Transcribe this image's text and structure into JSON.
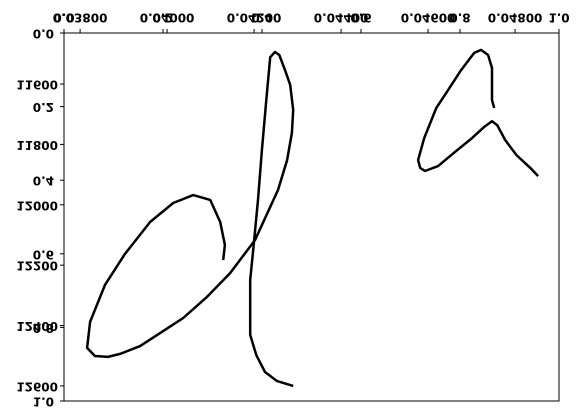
{
  "chart_data": {
    "type": "line",
    "x": [
      0.04129,
      0.04133,
      0.04122,
      0.04099,
      0.0406,
      0.04014,
      0.03961,
      0.03903,
      0.03857,
      0.03823,
      0.03816,
      0.03834,
      0.03864,
      0.03892,
      0.03938,
      0.03984,
      0.04037,
      0.04092,
      0.04145,
      0.04202,
      0.04255,
      0.04276,
      0.04287,
      0.0429,
      0.04283,
      0.04271,
      0.04258,
      0.04248,
      0.04237,
      0.04228,
      0.04218,
      0.04209,
      0.04198,
      0.04191,
      0.04191,
      0.04205,
      0.04225,
      0.04253,
      0.0429,
      null,
      0.04752,
      0.04747,
      0.04747,
      0.04738,
      0.04722,
      0.04706,
      0.04676,
      0.04646,
      0.04619,
      0.04591,
      0.04577,
      0.04582,
      0.04593,
      0.04623,
      0.04662,
      0.04701,
      0.04729,
      0.04747,
      0.04759,
      0.04777,
      0.04803,
      0.04835,
      0.04853
    ],
    "series": [
      {
        "color": "#000000",
        "values": [
          12183,
          12133,
          12057,
          11984,
          11968,
          11994,
          12057,
          12163,
          12266,
          12388,
          12474,
          12501,
          12504,
          12494,
          12468,
          12425,
          12375,
          12305,
          12226,
          12117,
          11951,
          11852,
          11762,
          11686,
          11603,
          11554,
          11504,
          11494,
          11511,
          11653,
          11819,
          11984,
          12150,
          12249,
          12431,
          12498,
          12554,
          12584,
          12600,
          null,
          11679,
          11653,
          11547,
          11504,
          11487,
          11497,
          11554,
          11620,
          11679,
          11779,
          11852,
          11878,
          11888,
          11872,
          11825,
          11779,
          11742,
          11723,
          11736,
          11785,
          11835,
          11878,
          11905
        ]
      }
    ],
    "xlim": [
      0.03763,
      0.04901
    ],
    "xticks": [
      {
        "value": 0.038,
        "label": "0.03800"
      },
      {
        "value": 0.04,
        "label": "0.04000"
      },
      {
        "value": 0.042,
        "label": "0.04200"
      },
      {
        "value": 0.044,
        "label": "0.04400"
      },
      {
        "value": 0.046,
        "label": "0.04600"
      },
      {
        "value": 0.048,
        "label": "0.04800"
      }
    ],
    "ylim": [
      11431,
      12650
    ],
    "y_inverted": true,
    "yticks": [
      11600,
      11800,
      12000,
      12200,
      12400,
      12600
    ],
    "x2lim": [
      0,
      1
    ],
    "x2ticks": [
      {
        "value": 0,
        "label": "0.0"
      },
      {
        "value": 0.2,
        "label": "0.2"
      },
      {
        "value": 0.4,
        "label": "0.4"
      },
      {
        "value": 0.6,
        "label": "0.6"
      },
      {
        "value": 0.8,
        "label": "0.8"
      },
      {
        "value": 1,
        "label": "1.0"
      }
    ],
    "y2lim": [
      0,
      1
    ],
    "y2ticks": [
      {
        "value": 0,
        "label": "0.0"
      },
      {
        "value": 0.2,
        "label": "0.2"
      },
      {
        "value": 0.4,
        "label": "0.4"
      },
      {
        "value": 0.6,
        "label": "0.6"
      },
      {
        "value": 0.8,
        "label": "0.8"
      },
      {
        "value": 1,
        "label": "1.0"
      }
    ]
  }
}
